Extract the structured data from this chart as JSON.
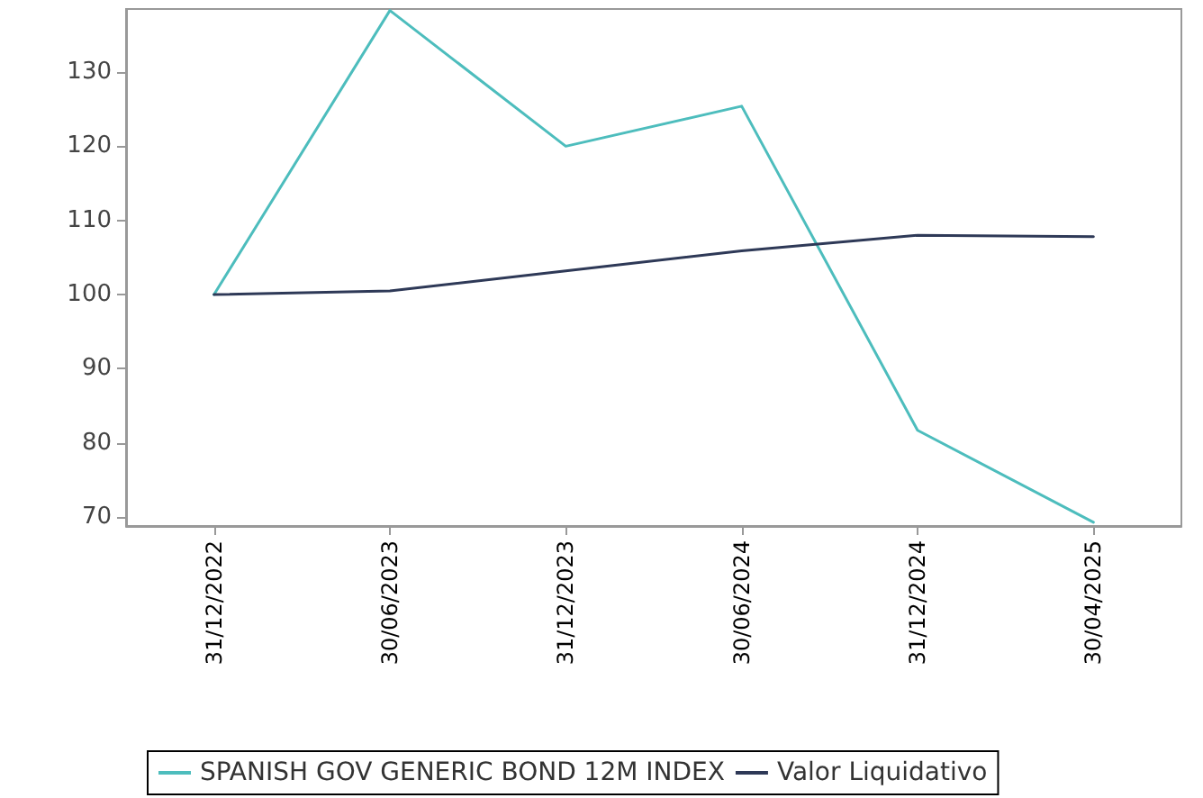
{
  "chart_data": {
    "type": "line",
    "categories": [
      "31/12/2022",
      "30/06/2023",
      "31/12/2023",
      "30/06/2024",
      "31/12/2024",
      "30/04/2025"
    ],
    "ylim": [
      68.8,
      138.5
    ],
    "yticks": [
      70,
      80,
      90,
      100,
      110,
      120,
      130
    ],
    "series": [
      {
        "name": "SPANISH GOV GENERIC BOND 12M INDEX",
        "color": "#4dbdbd",
        "values": [
          100,
          138.3,
          120,
          125.4,
          81.7,
          69.3
        ]
      },
      {
        "name": "Valor Liquidativo",
        "color": "#2e3957",
        "values": [
          100,
          100.5,
          103.2,
          105.9,
          108,
          107.8
        ]
      }
    ],
    "grid": false,
    "legend": "bottom",
    "marker": "none",
    "line_style": "solid"
  }
}
